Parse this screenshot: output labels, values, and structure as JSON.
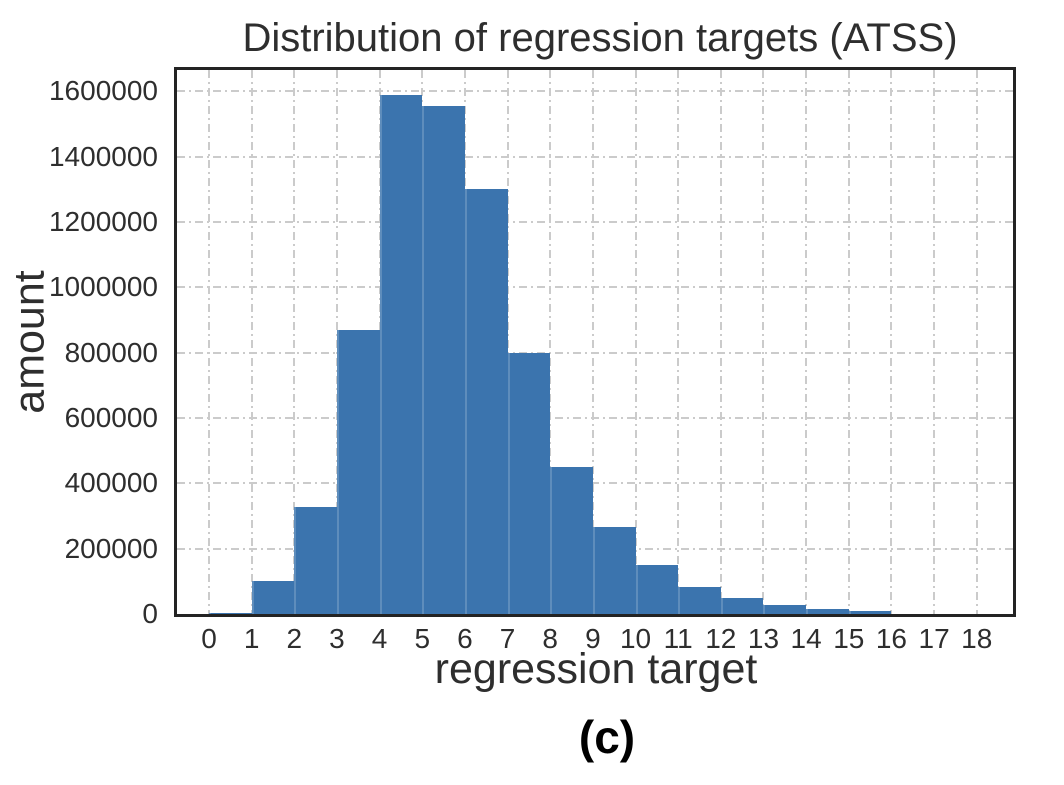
{
  "figure": {
    "caption": "(c)"
  },
  "chart_data": {
    "type": "bar",
    "subtype": "histogram",
    "title": "Distribution of regression targets (ATSS)",
    "xlabel": "regression target",
    "ylabel": "amount",
    "bin_edges": [
      0,
      1,
      2,
      3,
      4,
      5,
      6,
      7,
      8,
      9,
      10,
      11,
      12,
      13,
      14,
      15,
      16,
      17,
      18
    ],
    "counts": [
      2000,
      100000,
      328000,
      870000,
      1590000,
      1555000,
      1300000,
      798000,
      450000,
      265000,
      150000,
      84000,
      48000,
      28000,
      15000,
      8000,
      1500,
      500
    ],
    "x_ticks": [
      0,
      1,
      2,
      3,
      4,
      5,
      6,
      7,
      8,
      9,
      10,
      11,
      12,
      13,
      14,
      15,
      16,
      17,
      18
    ],
    "y_ticks": [
      0,
      200000,
      400000,
      600000,
      800000,
      1000000,
      1200000,
      1400000,
      1600000
    ],
    "y_tick_labels": [
      "0",
      "200000",
      "400000",
      "600000",
      "800000",
      "1000000",
      "1200000",
      "1400000",
      "1600000"
    ],
    "xlim": [
      -0.75,
      18.85
    ],
    "ylim": [
      0,
      1665000
    ],
    "grid": {
      "style": "dash-dot",
      "color": "#cbcbcb",
      "visible": true
    },
    "legend": "none",
    "colors": {
      "bar": "#3b74ae",
      "spine": "#232323",
      "text": "#2e2e2e",
      "background": "#ffffff"
    }
  }
}
